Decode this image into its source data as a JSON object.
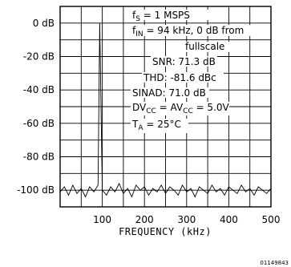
{
  "chart_data": {
    "type": "line",
    "title": "",
    "xlabel": "FREQUENCY (kHz)",
    "ylabel": "",
    "xlim": [
      0,
      500
    ],
    "ylim": [
      -110,
      10
    ],
    "xticks": [
      100,
      200,
      300,
      400,
      500
    ],
    "xtick_labels": [
      "100",
      "200",
      "300",
      "400",
      "500"
    ],
    "yticks": [
      0,
      -20,
      -40,
      -60,
      -80,
      -100
    ],
    "ytick_labels": [
      "0 dB",
      "-20 dB",
      "-40 dB",
      "-60 dB",
      "-80 dB",
      "-100 dB"
    ],
    "grid": true,
    "series": [
      {
        "x": [
          0,
          10,
          20,
          30,
          40,
          50,
          60,
          70,
          80,
          90,
          94,
          100,
          110,
          120,
          130,
          140,
          150,
          160,
          170,
          180,
          190,
          200,
          210,
          220,
          230,
          240,
          250,
          260,
          270,
          280,
          290,
          300,
          310,
          320,
          330,
          340,
          350,
          360,
          370,
          380,
          390,
          400,
          410,
          420,
          430,
          440,
          450,
          460,
          470,
          480,
          490,
          500
        ],
        "y": [
          -101,
          -98,
          -103,
          -97,
          -102,
          -99,
          -104,
          -98,
          -101,
          -97,
          0,
          -100,
          -103,
          -98,
          -101,
          -96,
          -102,
          -99,
          -104,
          -97,
          -100,
          -98,
          -103,
          -99,
          -101,
          -97,
          -102,
          -98,
          -100,
          -103,
          -97,
          -101,
          -99,
          -104,
          -98,
          -100,
          -102,
          -97,
          -101,
          -99,
          -103,
          -98,
          -100,
          -102,
          -97,
          -101,
          -99,
          -103,
          -98,
          -100,
          -102,
          -99
        ]
      }
    ],
    "annotations": {
      "fs": {
        "pre": "f",
        "sub": "S",
        "post": " = 1 MSPS"
      },
      "fin": {
        "pre": "f",
        "sub": "IN",
        "post": " = 94 kHz, 0 dB from"
      },
      "fullscale": "fullscale",
      "snr": "SNR: 71.3 dB",
      "thd": "THD: -81.6 dBc",
      "sinad": "SINAD: 71.0 dB",
      "dvcc": {
        "p1": "DV",
        "s1": "CC",
        "p2": " = AV",
        "s2": "CC",
        "p3": " = 5.0V"
      },
      "ta": {
        "pre": "T",
        "sub": "A",
        "post": " = 25°C"
      }
    },
    "figure_number": "01149843"
  }
}
